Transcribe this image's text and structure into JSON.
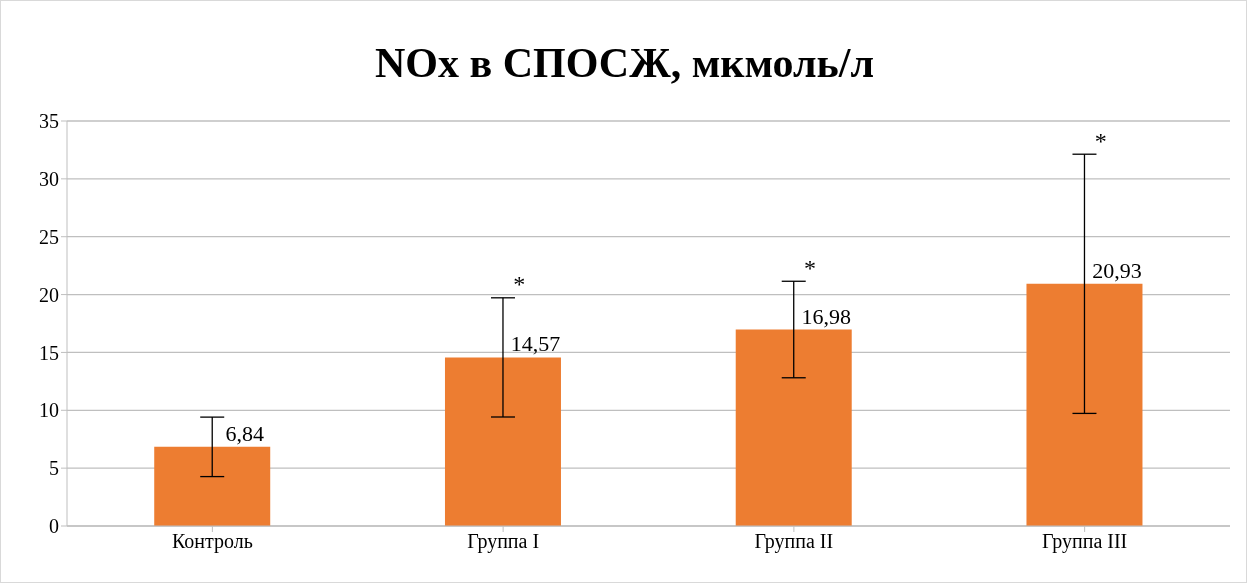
{
  "chart_data": {
    "type": "bar",
    "title": "NOx в СПОСЖ, мкмоль/л",
    "categories": [
      "Контроль",
      "Группа I",
      "Группа II",
      "Группа III"
    ],
    "values": [
      6.84,
      14.57,
      16.98,
      20.93
    ],
    "value_labels": [
      "6,84",
      "14,57",
      "16,98",
      "20,93"
    ],
    "errors": [
      2.57,
      5.15,
      4.17,
      11.2
    ],
    "color": "#ed7d31",
    "ylim": [
      0,
      35
    ],
    "yticks": [
      0,
      5,
      10,
      15,
      20,
      25,
      30,
      35
    ],
    "grid": "y",
    "annotations": [
      "*",
      "*",
      "*"
    ]
  }
}
